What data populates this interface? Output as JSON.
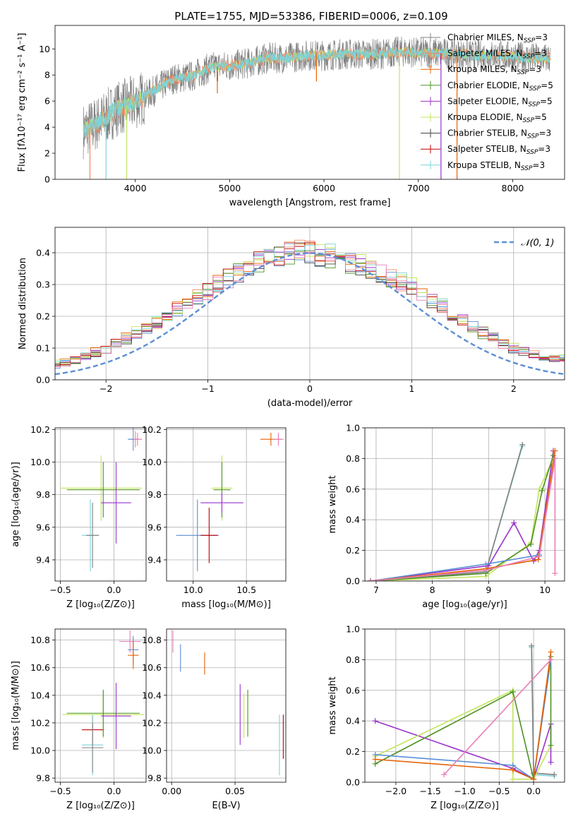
{
  "figure_title": "PLATE=1755, MJD=53386, FIBERID=0006, z=0.109",
  "colors": {
    "MILES_Chabrier": "#808080",
    "MILES_Salpeter": "#ef8a62",
    "MILES_Kroupa": "#e66101",
    "ELODIE_Chabrier": "#4d9221",
    "ELODIE_Salpeter": "#9932cc",
    "ELODIE_Kroupa": "#c2e55a",
    "STELIB_Chabrier": "#404040",
    "STELIB_Salpeter": "#c00000",
    "STELIB_Kroupa": "#7dd3d8",
    "extra_blue": "#5b8fd6",
    "extra_pink": "#e87fb7"
  },
  "legend": {
    "spectrum": [
      {
        "label": "Chabrier MILES, N",
        "sub": "SSP",
        "tail": "=3",
        "color": "#808080"
      },
      {
        "label": "Salpeter MILES, N",
        "sub": "SSP",
        "tail": "=3",
        "color": "#ef8a62"
      },
      {
        "label": "Kroupa MILES, N",
        "sub": "SSP",
        "tail": "=3",
        "color": "#e66101"
      },
      {
        "label": "Chabrier ELODIE, N",
        "sub": "SSP",
        "tail": "=5",
        "color": "#4d9221"
      },
      {
        "label": "Salpeter ELODIE, N",
        "sub": "SSP",
        "tail": "=5",
        "color": "#9932cc"
      },
      {
        "label": "Kroupa ELODIE, N",
        "sub": "SSP",
        "tail": "=5",
        "color": "#c2e55a"
      },
      {
        "label": "Chabrier STELIB, N",
        "sub": "SSP",
        "tail": "=3",
        "color": "#404040"
      },
      {
        "label": "Salpeter STELIB, N",
        "sub": "SSP",
        "tail": "=3",
        "color": "#c00000"
      },
      {
        "label": "Kroupa STELIB, N",
        "sub": "SSP",
        "tail": "=3",
        "color": "#7dd3d8"
      }
    ],
    "hist": "𝒩(0, 1)"
  },
  "chart_data": [
    {
      "type": "line",
      "id": "spectrum",
      "xlabel": "wavelength [Angstrom, rest frame]",
      "ylabel": "Flux [fλ10⁻¹⁷ erg cm⁻² s⁻¹ A⁻¹]",
      "xlim": [
        3150,
        8550
      ],
      "ylim": [
        0,
        11.8
      ],
      "xticks": [
        4000,
        5000,
        6000,
        7000,
        8000
      ],
      "yticks": [
        0,
        2,
        4,
        6,
        8,
        10
      ],
      "grid": false,
      "legend_position": "upper-right",
      "continuum": [
        [
          3450,
          3.7
        ],
        [
          3600,
          4.3
        ],
        [
          3800,
          5.4
        ],
        [
          4000,
          5.9
        ],
        [
          4200,
          6.8
        ],
        [
          4400,
          7.7
        ],
        [
          4600,
          7.9
        ],
        [
          4800,
          8.6
        ],
        [
          5000,
          8.7
        ],
        [
          5200,
          8.9
        ],
        [
          5400,
          9.3
        ],
        [
          5600,
          9.3
        ],
        [
          5800,
          9.5
        ],
        [
          6000,
          9.5
        ],
        [
          6200,
          9.6
        ],
        [
          6400,
          9.6
        ],
        [
          6600,
          9.6
        ],
        [
          6800,
          9.8
        ],
        [
          7000,
          9.7
        ],
        [
          7200,
          9.7
        ],
        [
          7400,
          9.6
        ],
        [
          7600,
          9.5
        ],
        [
          7800,
          9.5
        ],
        [
          8000,
          9.4
        ],
        [
          8200,
          9.3
        ],
        [
          8400,
          9.3
        ]
      ],
      "dips": [
        {
          "x": 3520,
          "ymin": 0,
          "color": "#ef8a62"
        },
        {
          "x": 3690,
          "ymin": 0,
          "color": "#7dd3d8"
        },
        {
          "x": 3910,
          "ymin": 0,
          "color": "#c2e55a"
        },
        {
          "x": 4870,
          "ymin": 6.6,
          "color": "#e66101"
        },
        {
          "x": 5920,
          "ymin": 7.5,
          "color": "#e66101"
        },
        {
          "x": 6800,
          "ymin": 0,
          "color": "#c2e55a"
        },
        {
          "x": 7240,
          "ymin": 0,
          "color": "#9932cc"
        },
        {
          "x": 7410,
          "ymin": 0,
          "color": "#e66101"
        }
      ]
    },
    {
      "type": "bar",
      "id": "hist",
      "xlabel": "(data-model)/error",
      "ylabel": "Normed distribution",
      "xlim": [
        -2.5,
        2.5
      ],
      "ylim": [
        0,
        0.48
      ],
      "xticks": [
        -2,
        -1,
        0,
        1,
        2
      ],
      "yticks": [
        0,
        0.1,
        0.2,
        0.3,
        0.4
      ],
      "grid": true,
      "bin_width": 0.1,
      "base": [
        0.03,
        0.035,
        0.04,
        0.045,
        0.05,
        0.055,
        0.065,
        0.075,
        0.085,
        0.1,
        0.115,
        0.13,
        0.15,
        0.165,
        0.18,
        0.2,
        0.22,
        0.24,
        0.26,
        0.28,
        0.3,
        0.32,
        0.34,
        0.355,
        0.37,
        0.385,
        0.39,
        0.4,
        0.41,
        0.405,
        0.395,
        0.39,
        0.38,
        0.37,
        0.36,
        0.35,
        0.335,
        0.32,
        0.305,
        0.29,
        0.27,
        0.25,
        0.23,
        0.21,
        0.19,
        0.17,
        0.15,
        0.13,
        0.115,
        0.1,
        0.09,
        0.08,
        0.075,
        0.07,
        0.065,
        0.06,
        0.055,
        0.05,
        0.045,
        0.04,
        0.04
      ],
      "gaussian": {
        "mu": 0,
        "sigma": 1
      }
    },
    {
      "type": "scatter",
      "id": "z_age",
      "xlabel": "Z [log₁₀(Z/Z⊙)]",
      "ylabel": "age  [log₁₀(age/yr)]",
      "xlim": [
        -0.55,
        0.3
      ],
      "ylim": [
        9.27,
        10.21
      ],
      "xticks": [
        -0.5,
        0.0
      ],
      "yticks": [
        9.4,
        9.6,
        9.8,
        10.0,
        10.2
      ],
      "grid": true,
      "points": [
        {
          "x": 0.2,
          "y": 10.14,
          "xerr": 0.06,
          "yerr": 0.05,
          "color": "#ef8a62"
        },
        {
          "x": 0.18,
          "y": 10.14,
          "xerr": 0.05,
          "yerr": 0.07,
          "color": "#5b8fd6"
        },
        {
          "x": 0.22,
          "y": 10.14,
          "xerr": 0.04,
          "yerr": 0.04,
          "color": "#e87fb7"
        },
        {
          "x": -0.12,
          "y": 9.84,
          "xerr": 0.38,
          "yerr": 0.2,
          "color": "#c2e55a"
        },
        {
          "x": -0.1,
          "y": 9.83,
          "xerr": 0.34,
          "yerr": 0.17,
          "color": "#4d9221"
        },
        {
          "x": 0.02,
          "y": 9.75,
          "xerr": 0.14,
          "yerr": 0.25,
          "color": "#9932cc"
        },
        {
          "x": -0.22,
          "y": 9.55,
          "xerr": 0.08,
          "yerr": 0.22,
          "color": "#7dd3d8"
        },
        {
          "x": -0.2,
          "y": 9.55,
          "xerr": 0.06,
          "yerr": 0.2,
          "color": "#808080"
        }
      ]
    },
    {
      "type": "scatter",
      "id": "mass_age",
      "xlabel": "mass [log₁₀(M/M⊙)]",
      "ylabel": "",
      "xlim": [
        9.75,
        10.87
      ],
      "ylim": [
        9.27,
        10.21
      ],
      "xticks": [
        10.0,
        10.5
      ],
      "yticks": [
        9.4,
        9.6,
        9.8,
        10.0,
        10.2
      ],
      "grid": true,
      "points": [
        {
          "x": 10.73,
          "y": 10.14,
          "xerr": 0.1,
          "yerr": 0.04,
          "color": "#e66101"
        },
        {
          "x": 10.8,
          "y": 10.14,
          "xerr": 0.05,
          "yerr": 0.04,
          "color": "#e87fb7"
        },
        {
          "x": 10.27,
          "y": 9.84,
          "xerr": 0.1,
          "yerr": 0.2,
          "color": "#c2e55a"
        },
        {
          "x": 10.27,
          "y": 9.83,
          "xerr": 0.08,
          "yerr": 0.17,
          "color": "#4d9221"
        },
        {
          "x": 10.27,
          "y": 9.75,
          "xerr": 0.2,
          "yerr": 0.06,
          "color": "#9932cc"
        },
        {
          "x": 10.04,
          "y": 9.55,
          "xerr": 0.2,
          "yerr": 0.22,
          "color": "#5b8fd6"
        },
        {
          "x": 10.15,
          "y": 9.55,
          "xerr": 0.08,
          "yerr": 0.17,
          "color": "#c00000"
        }
      ]
    },
    {
      "type": "line",
      "id": "age_weight",
      "xlabel": "age  [log₁₀(age/yr)]",
      "ylabel": "mass weight",
      "xlim": [
        6.8,
        10.35
      ],
      "ylim": [
        0,
        1.0
      ],
      "xticks": [
        7,
        8,
        9,
        10
      ],
      "yticks": [
        0.0,
        0.2,
        0.4,
        0.6,
        0.8,
        1.0
      ],
      "grid": true,
      "series": [
        {
          "color": "#7dd3d8",
          "points": [
            [
              6.9,
              0
            ],
            [
              8.95,
              0.06
            ],
            [
              9.6,
              0.88
            ]
          ]
        },
        {
          "color": "#808080",
          "points": [
            [
              6.9,
              0
            ],
            [
              8.95,
              0.06
            ],
            [
              9.6,
              0.89
            ]
          ]
        },
        {
          "color": "#9932cc",
          "points": [
            [
              6.9,
              0
            ],
            [
              9.0,
              0.1
            ],
            [
              9.45,
              0.38
            ],
            [
              9.8,
              0.13
            ],
            [
              9.9,
              0.2
            ],
            [
              10.15,
              0.85
            ]
          ]
        },
        {
          "color": "#c2e55a",
          "points": [
            [
              6.9,
              0
            ],
            [
              8.95,
              0.03
            ],
            [
              9.75,
              0.25
            ],
            [
              9.9,
              0.6
            ],
            [
              10.15,
              0.8
            ]
          ]
        },
        {
          "color": "#4d9221",
          "points": [
            [
              6.9,
              0
            ],
            [
              8.95,
              0.05
            ],
            [
              9.75,
              0.24
            ],
            [
              9.95,
              0.59
            ],
            [
              10.15,
              0.82
            ]
          ]
        },
        {
          "color": "#5b8fd6",
          "points": [
            [
              6.9,
              0
            ],
            [
              8.95,
              0.11
            ],
            [
              9.9,
              0.17
            ],
            [
              10.18,
              0.8
            ]
          ]
        },
        {
          "color": "#e66101",
          "points": [
            [
              6.9,
              0
            ],
            [
              8.95,
              0.08
            ],
            [
              9.88,
              0.14
            ],
            [
              10.18,
              0.85
            ]
          ]
        },
        {
          "color": "#e87fb7",
          "points": [
            [
              6.9,
              0
            ],
            [
              8.95,
              0.07
            ],
            [
              9.9,
              0.16
            ],
            [
              10.18,
              0.8
            ],
            [
              10.18,
              0.05
            ]
          ]
        }
      ]
    },
    {
      "type": "scatter",
      "id": "z_mass",
      "xlabel": "Z [log₁₀(Z/Z⊙)]",
      "ylabel": "mass [log₁₀(M/M⊙)]",
      "xlim": [
        -0.55,
        0.3
      ],
      "ylim": [
        9.77,
        10.88
      ],
      "xticks": [
        -0.5,
        0.0
      ],
      "yticks": [
        9.8,
        10.0,
        10.2,
        10.4,
        10.6,
        10.8
      ],
      "grid": true,
      "points": [
        {
          "x": 0.15,
          "y": 10.79,
          "xerr": 0.1,
          "yerr": 0.08,
          "color": "#e87fb7"
        },
        {
          "x": 0.18,
          "y": 10.73,
          "xerr": 0.05,
          "yerr": 0.1,
          "color": "#5b8fd6"
        },
        {
          "x": 0.18,
          "y": 10.69,
          "xerr": 0.05,
          "yerr": 0.1,
          "color": "#e66101"
        },
        {
          "x": -0.1,
          "y": 10.26,
          "xerr": 0.38,
          "yerr": 0.17,
          "color": "#c2e55a"
        },
        {
          "x": -0.1,
          "y": 10.27,
          "xerr": 0.34,
          "yerr": 0.17,
          "color": "#4d9221"
        },
        {
          "x": 0.02,
          "y": 10.25,
          "xerr": 0.14,
          "yerr": 0.24,
          "color": "#9932cc"
        },
        {
          "x": -0.2,
          "y": 10.15,
          "xerr": 0.1,
          "yerr": 0.1,
          "color": "#c00000"
        },
        {
          "x": -0.2,
          "y": 10.04,
          "xerr": 0.1,
          "yerr": 0.22,
          "color": "#7dd3d8"
        },
        {
          "x": -0.2,
          "y": 10.02,
          "xerr": 0.1,
          "yerr": 0.18,
          "color": "#808080"
        }
      ]
    },
    {
      "type": "scatter",
      "id": "ebv_mass",
      "xlabel": "E(B-V)",
      "ylabel": "",
      "xlim": [
        -0.004,
        0.09
      ],
      "ylim": [
        9.77,
        10.88
      ],
      "xticks": [
        0.0,
        0.05
      ],
      "yticks": [
        9.8,
        10.0,
        10.2,
        10.4,
        10.6,
        10.8
      ],
      "grid": true,
      "points": [
        {
          "x": 0.001,
          "y": 10.79,
          "xerr": 0,
          "yerr": 0.08,
          "color": "#e87fb7"
        },
        {
          "x": 0.007,
          "y": 10.67,
          "xerr": 0,
          "yerr": 0.1,
          "color": "#5b8fd6"
        },
        {
          "x": 0.026,
          "y": 10.63,
          "xerr": 0,
          "yerr": 0.08,
          "color": "#e66101"
        },
        {
          "x": 0.054,
          "y": 10.26,
          "xerr": 0,
          "yerr": 0.22,
          "color": "#9932cc"
        },
        {
          "x": 0.057,
          "y": 10.25,
          "xerr": 0,
          "yerr": 0.16,
          "color": "#c2e55a"
        },
        {
          "x": 0.06,
          "y": 10.27,
          "xerr": 0,
          "yerr": 0.17,
          "color": "#4d9221"
        },
        {
          "x": 0.085,
          "y": 10.04,
          "xerr": 0,
          "yerr": 0.22,
          "color": "#7dd3d8"
        },
        {
          "x": 0.088,
          "y": 10.1,
          "xerr": 0,
          "yerr": 0.16,
          "color": "#c00000"
        }
      ]
    },
    {
      "type": "line",
      "id": "z_weight",
      "xlabel": "Z [log₁₀(Z/Z⊙)]",
      "ylabel": "mass weight",
      "xlim": [
        -2.45,
        0.45
      ],
      "ylim": [
        0,
        1.0
      ],
      "xticks": [
        -2.0,
        -1.5,
        -1.0,
        -0.5,
        0.0
      ],
      "yticks": [
        0.0,
        0.2,
        0.4,
        0.6,
        0.8,
        1.0
      ],
      "grid": true,
      "series": [
        {
          "color": "#7dd3d8",
          "points": [
            [
              -0.03,
              0.88
            ],
            [
              0.0,
              0.05
            ],
            [
              0.3,
              0.04
            ]
          ]
        },
        {
          "color": "#808080",
          "points": [
            [
              -0.03,
              0.89
            ],
            [
              0.0,
              0.06
            ],
            [
              0.3,
              0.05
            ]
          ]
        },
        {
          "color": "#9932cc",
          "points": [
            [
              -2.3,
              0.4
            ],
            [
              -0.3,
              0.09
            ],
            [
              0.0,
              0.02
            ],
            [
              0.25,
              0.38
            ],
            [
              0.25,
              0.13
            ]
          ]
        },
        {
          "color": "#c2e55a",
          "points": [
            [
              -2.3,
              0.17
            ],
            [
              -0.3,
              0.6
            ],
            [
              -0.3,
              0.02
            ],
            [
              0.0,
              0.02
            ],
            [
              0.25,
              0.24
            ]
          ]
        },
        {
          "color": "#4d9221",
          "points": [
            [
              -2.3,
              0.12
            ],
            [
              -0.3,
              0.59
            ],
            [
              0.0,
              0.02
            ],
            [
              0.25,
              0.82
            ],
            [
              0.25,
              0.24
            ]
          ]
        },
        {
          "color": "#5b8fd6",
          "points": [
            [
              -2.3,
              0.18
            ],
            [
              -0.3,
              0.11
            ],
            [
              0.0,
              0.02
            ],
            [
              0.25,
              0.8
            ]
          ]
        },
        {
          "color": "#e66101",
          "points": [
            [
              -2.3,
              0.15
            ],
            [
              -0.3,
              0.08
            ],
            [
              0.0,
              0.02
            ],
            [
              0.25,
              0.85
            ]
          ]
        },
        {
          "color": "#e87fb7",
          "points": [
            [
              -1.3,
              0.05
            ],
            [
              0.25,
              0.8
            ]
          ]
        }
      ]
    }
  ]
}
